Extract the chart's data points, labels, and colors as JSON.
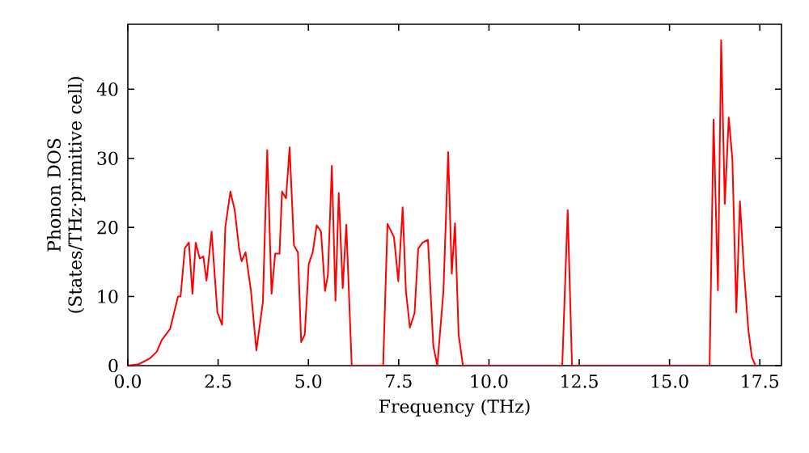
{
  "chart_data": {
    "type": "line",
    "xlabel": "Frequency (THz)",
    "ylabel": "Phonon DOS (States/THz·primitive cell)",
    "xlim": [
      0,
      18.1
    ],
    "ylim": [
      0,
      49.4
    ],
    "xticks": [
      {
        "value": 0,
        "label": "0.0"
      },
      {
        "value": 2.5,
        "label": "2.5"
      },
      {
        "value": 5,
        "label": "5.0"
      },
      {
        "value": 7.5,
        "label": "7.5"
      },
      {
        "value": 10,
        "label": "10.0"
      },
      {
        "value": 12.5,
        "label": "12.5"
      },
      {
        "value": 15,
        "label": "15.0"
      },
      {
        "value": 17.5,
        "label": "17.5"
      }
    ],
    "yticks": [
      0,
      10,
      20,
      30,
      40
    ],
    "grid": false,
    "marker": "none",
    "line_style": "solid",
    "series": [
      {
        "color": "#ff0000",
        "x": [
          0.0,
          0.3,
          0.6,
          0.8,
          0.94,
          1.17,
          1.39,
          1.46,
          1.58,
          1.69,
          1.79,
          1.88,
          1.99,
          2.09,
          2.18,
          2.32,
          2.48,
          2.61,
          2.7,
          2.84,
          2.96,
          3.08,
          3.15,
          3.26,
          3.41,
          3.56,
          3.74,
          3.86,
          3.98,
          4.08,
          4.2,
          4.27,
          4.38,
          4.48,
          4.6,
          4.71,
          4.8,
          4.9,
          5.01,
          5.12,
          5.23,
          5.35,
          5.46,
          5.54,
          5.65,
          5.75,
          5.84,
          5.95,
          6.05,
          6.2,
          7.07,
          7.19,
          7.37,
          7.49,
          7.61,
          7.7,
          7.81,
          7.94,
          8.04,
          8.16,
          8.31,
          8.46,
          8.57,
          8.74,
          8.87,
          8.97,
          9.06,
          9.16,
          9.28,
          12.03,
          12.18,
          12.3,
          16.11,
          16.22,
          16.34,
          16.43,
          16.53,
          16.64,
          16.74,
          16.85,
          16.95,
          17.06,
          17.18,
          17.28,
          17.38,
          17.45
        ],
        "values": [
          0,
          0.2,
          1,
          2,
          3.7,
          5.3,
          10,
          10,
          17,
          17.8,
          10.4,
          17.8,
          15.5,
          15.8,
          12.3,
          19.4,
          7.7,
          5.9,
          20.1,
          25.2,
          22.5,
          17,
          15.1,
          16.4,
          10.8,
          2.2,
          9.2,
          31.2,
          10.4,
          16.2,
          16.2,
          25.2,
          24.2,
          31.6,
          17.4,
          16.4,
          3.4,
          4.5,
          14.7,
          16.4,
          20.3,
          19.4,
          10.8,
          13.1,
          28.9,
          9.4,
          25,
          11.2,
          20.4,
          0,
          0,
          20.5,
          18.6,
          12.2,
          22.9,
          10.8,
          5.5,
          7.6,
          16.9,
          17.8,
          18.2,
          2.8,
          0,
          10.8,
          30.9,
          13.3,
          20.6,
          4.5,
          0,
          0,
          22.5,
          0,
          0,
          35.6,
          10.9,
          47.1,
          23.4,
          35.9,
          29.9,
          7.7,
          23.8,
          13.9,
          5.3,
          1.2,
          0,
          0
        ]
      }
    ]
  }
}
